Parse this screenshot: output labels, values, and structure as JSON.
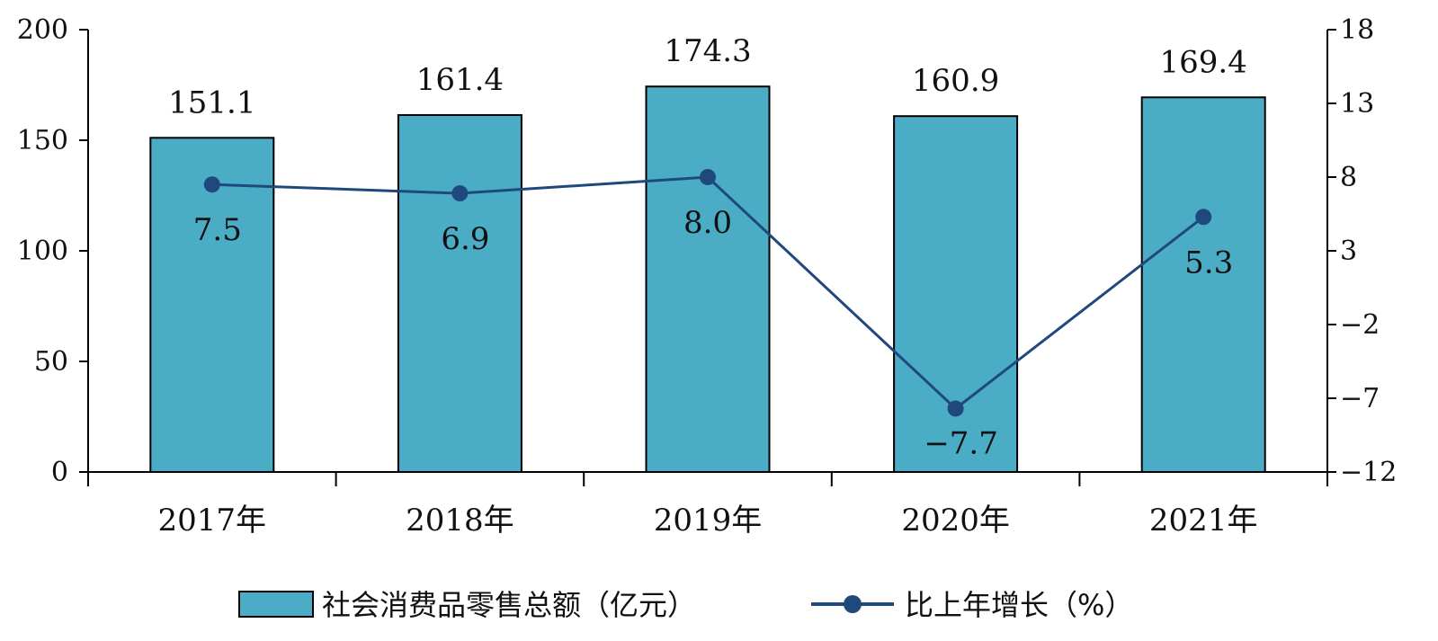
{
  "chart_data": {
    "type": "bar",
    "categories": [
      "2017年",
      "2018年",
      "2019年",
      "2020年",
      "2021年"
    ],
    "series": [
      {
        "name": "社会消费品零售总额（亿元）",
        "type": "bar",
        "axis": "left",
        "values": [
          151.1,
          161.4,
          174.3,
          160.9,
          169.4
        ],
        "labels": [
          "151.1",
          "161.4",
          "174.3",
          "160.9",
          "169.4"
        ],
        "color": "#4BACC6"
      },
      {
        "name": "比上年增长（%）",
        "type": "line",
        "axis": "right",
        "values": [
          7.5,
          6.9,
          8.0,
          -7.7,
          5.3
        ],
        "labels": [
          "7.5",
          "6.9",
          "8.0",
          "−7.7",
          "5.3"
        ],
        "color": "#1F497D"
      }
    ],
    "y_left": {
      "ylim": [
        0,
        200
      ],
      "ticks": [
        0,
        50,
        100,
        150,
        200
      ],
      "tick_labels": [
        "0",
        "50",
        "100",
        "150",
        "200"
      ]
    },
    "y_right": {
      "ylim": [
        -12,
        18
      ],
      "ticks": [
        -12,
        -7,
        -2,
        3,
        8,
        13,
        18
      ],
      "tick_labels": [
        "−12",
        "−7",
        "−2",
        "3",
        "8",
        "13",
        "18"
      ]
    },
    "grid": false,
    "legend": "bottom"
  }
}
